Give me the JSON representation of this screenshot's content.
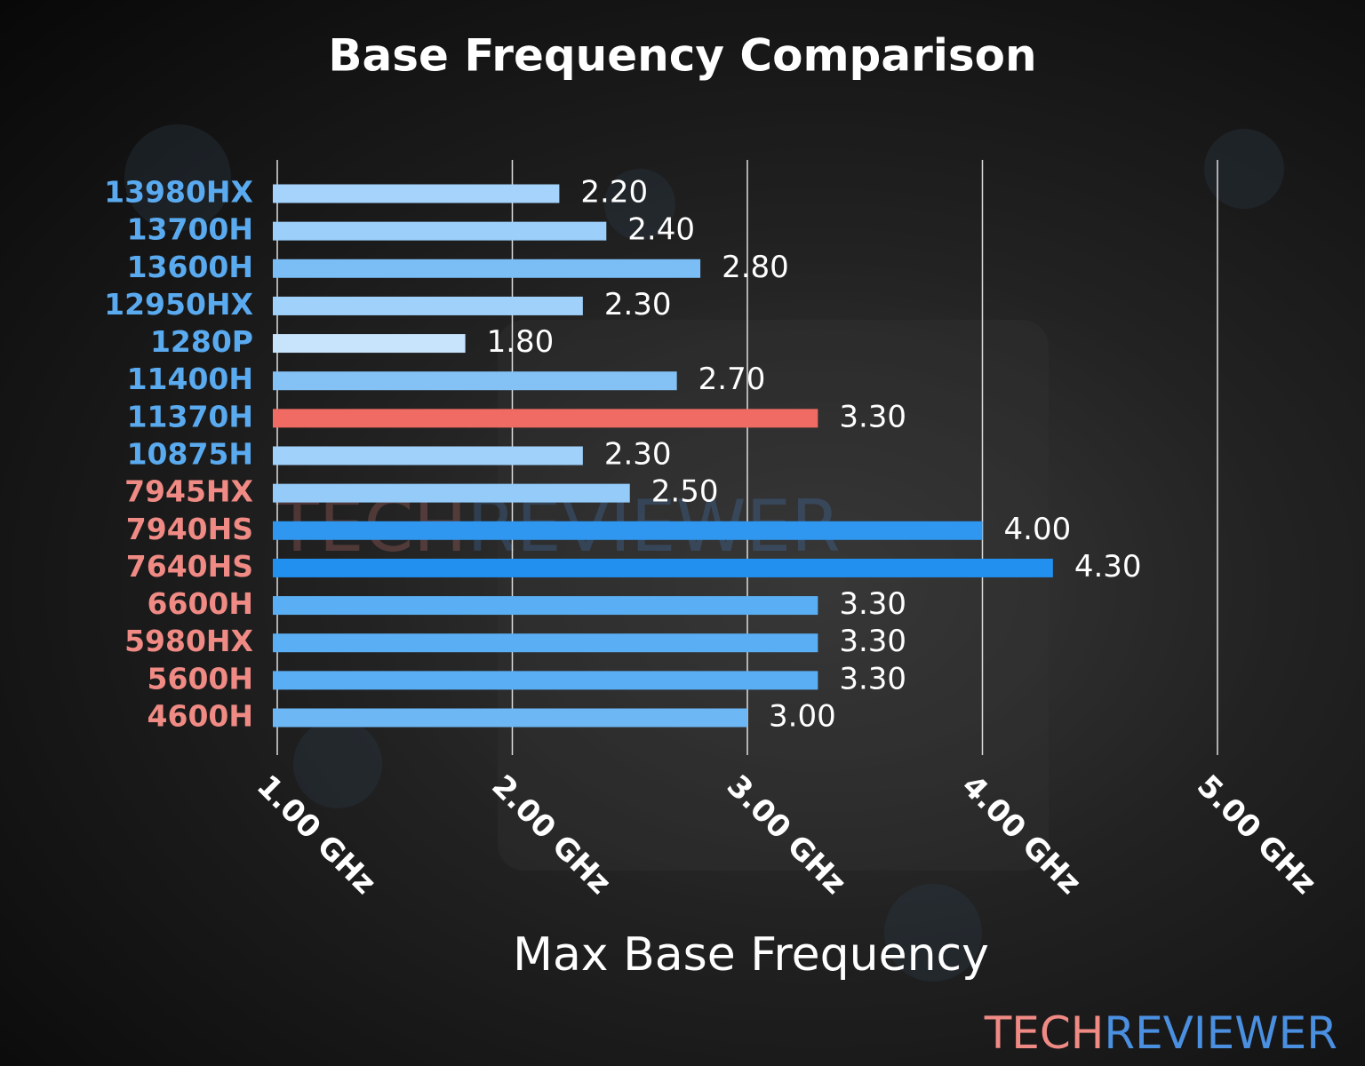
{
  "chart_data": {
    "type": "bar",
    "orientation": "horizontal",
    "title": "Base Frequency Comparison",
    "x_label": "Max Base Frequency",
    "categories": [
      "13980HX",
      "13700H",
      "13600H",
      "12950HX",
      "1280P",
      "11400H",
      "11370H",
      "10875H",
      "7945HX",
      "7940HS",
      "7640HS",
      "6600H",
      "5980HX",
      "5600H",
      "4600H"
    ],
    "category_colors": [
      "#5aaaf0",
      "#5aaaf0",
      "#5aaaf0",
      "#5aaaf0",
      "#5aaaf0",
      "#5aaaf0",
      "#5aaaf0",
      "#5aaaf0",
      "#f08a84",
      "#f08a84",
      "#f08a84",
      "#f08a84",
      "#f08a84",
      "#f08a84",
      "#f08a84"
    ],
    "values": [
      2.2,
      2.4,
      2.8,
      2.3,
      1.8,
      2.7,
      3.3,
      2.3,
      2.5,
      4.0,
      4.3,
      3.3,
      3.3,
      3.3,
      3.0
    ],
    "value_labels": [
      "2.20",
      "2.40",
      "2.80",
      "2.30",
      "1.80",
      "2.70",
      "3.30",
      "2.30",
      "2.50",
      "4.00",
      "4.30",
      "3.30",
      "3.30",
      "3.30",
      "3.00"
    ],
    "colors": [
      "#a5d3fb",
      "#9ccffa",
      "#7bbdf5",
      "#a0d1fa",
      "#c8e4fd",
      "#84c2f6",
      "#ef6b63",
      "#a0d1fa",
      "#94cbf9",
      "#2f97ef",
      "#2190ef",
      "#5aaef3",
      "#5aaef3",
      "#5aaef3",
      "#6db7f4"
    ],
    "xlim": [
      1,
      5
    ],
    "xticks": [
      {
        "value": 1,
        "label": "1.00 GHz"
      },
      {
        "value": 2,
        "label": "2.00 GHz"
      },
      {
        "value": 3,
        "label": "3.00 GHz"
      },
      {
        "value": 4,
        "label": "4.00 GHz"
      },
      {
        "value": 5,
        "label": "5.00 GHz"
      }
    ],
    "grid": true,
    "watermark": {
      "part1": "TECH",
      "part2": "REVIEWER",
      "color1": "#f08a84",
      "color2": "#4a8fe0"
    }
  }
}
